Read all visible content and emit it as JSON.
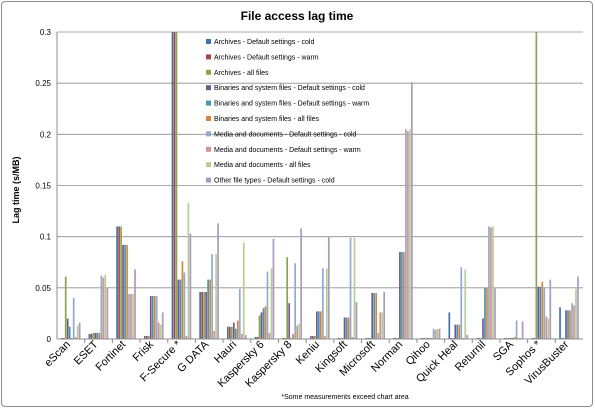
{
  "chart_data": {
    "type": "bar",
    "title": "File access lag time",
    "xlabel": "",
    "ylabel": "Lag time (s/MB)",
    "ylim": [
      0,
      0.3
    ],
    "yticks": [
      "0",
      "0.05",
      "0.1",
      "0.15",
      "0.2",
      "0.25",
      "0.3"
    ],
    "grid": true,
    "legend_placement": "inside-top-left",
    "note": "*Some measurements exceed chart area",
    "categories": [
      "eScan",
      "ESET",
      "Fortinet",
      "Frisk",
      "F-Secure *",
      "G DATA",
      "Hauri",
      "Kaspersky 6",
      "Kaspersky 8",
      "Keniu",
      "Kingsoft",
      "Microsoft",
      "Norman",
      "Qihoo",
      "Quick Heal",
      "Returnil",
      "SGA",
      "Sophos *",
      "VirusBuster"
    ],
    "series": [
      {
        "name": "Archives - Default settings - cold",
        "color": "#4572A7",
        "values": [
          0.001,
          0.005,
          0.11,
          0.003,
          0.3,
          0.046,
          0.012,
          0.002,
          0.001,
          0.003,
          0.001,
          0.001,
          0.001,
          0.001,
          0.026,
          0.001,
          0.001,
          0.001,
          0.031
        ]
      },
      {
        "name": "Archives - Default settings - warm",
        "color": "#AA4643",
        "values": [
          0.001,
          0.005,
          0.11,
          0.003,
          0.3,
          0.046,
          0.012,
          0.002,
          0.001,
          0.003,
          0.001,
          0.001,
          0.001,
          0.001,
          0.001,
          0.001,
          0.001,
          0.001,
          0.001
        ]
      },
      {
        "name": "Archives - all files",
        "color": "#89A54E",
        "values": [
          0.061,
          0.006,
          0.11,
          0.003,
          0.3,
          0.046,
          0.012,
          0.023,
          0.08,
          0.003,
          0.001,
          0.001,
          0.001,
          0.001,
          0.001,
          0.001,
          0.001,
          0.3,
          0.001
        ]
      },
      {
        "name": "Binaries and system files - Default settings - cold",
        "color": "#71588F",
        "values": [
          0.02,
          0.006,
          0.092,
          0.042,
          0.058,
          0.046,
          0.016,
          0.026,
          0.035,
          0.027,
          0.021,
          0.045,
          0.085,
          0.001,
          0.014,
          0.02,
          0.001,
          0.051,
          0.028
        ]
      },
      {
        "name": "Binaries and system files - Default settings - warm",
        "color": "#4198AF",
        "values": [
          0.012,
          0.006,
          0.092,
          0.042,
          0.058,
          0.058,
          0.01,
          0.03,
          0.001,
          0.027,
          0.021,
          0.045,
          0.085,
          0.001,
          0.014,
          0.05,
          0.001,
          0.051,
          0.028
        ]
      },
      {
        "name": "Binaries and system files - all files",
        "color": "#DB843D",
        "values": [
          0.001,
          0.006,
          0.092,
          0.042,
          0.076,
          0.058,
          0.018,
          0.032,
          0.005,
          0.027,
          0.021,
          0.045,
          0.085,
          0.001,
          0.014,
          0.05,
          0.002,
          0.056,
          0.028
        ]
      },
      {
        "name": "Media and documents - Default settings - cold",
        "color": "#93A9CF",
        "values": [
          0.04,
          0.062,
          0.044,
          0.042,
          0.065,
          0.083,
          0.049,
          0.066,
          0.074,
          0.069,
          0.099,
          0.006,
          0.205,
          0.01,
          0.07,
          0.11,
          0.018,
          0.05,
          0.035
        ]
      },
      {
        "name": "Media and documents - Default settings - warm",
        "color": "#D19392",
        "values": [
          0.002,
          0.06,
          0.044,
          0.016,
          0.003,
          0.008,
          0.005,
          0.006,
          0.013,
          0.003,
          0.002,
          0.026,
          0.203,
          0.009,
          0.001,
          0.109,
          0.001,
          0.022,
          0.033
        ]
      },
      {
        "name": "Media and documents - all files",
        "color": "#B9CD96",
        "values": [
          0.013,
          0.063,
          0.044,
          0.014,
          0.133,
          0.083,
          0.094,
          0.069,
          0.015,
          0.069,
          0.099,
          0.026,
          0.205,
          0.01,
          0.068,
          0.11,
          0.001,
          0.02,
          0.049
        ]
      },
      {
        "name": "Other file types - Default settings - cold",
        "color": "#A99BBD",
        "values": [
          0.016,
          0.05,
          0.068,
          0.026,
          0.103,
          0.113,
          0.004,
          0.098,
          0.108,
          0.1,
          0.036,
          0.046,
          0.251,
          0.01,
          0.004,
          0.05,
          0.017,
          0.058,
          0.061
        ]
      }
    ]
  }
}
